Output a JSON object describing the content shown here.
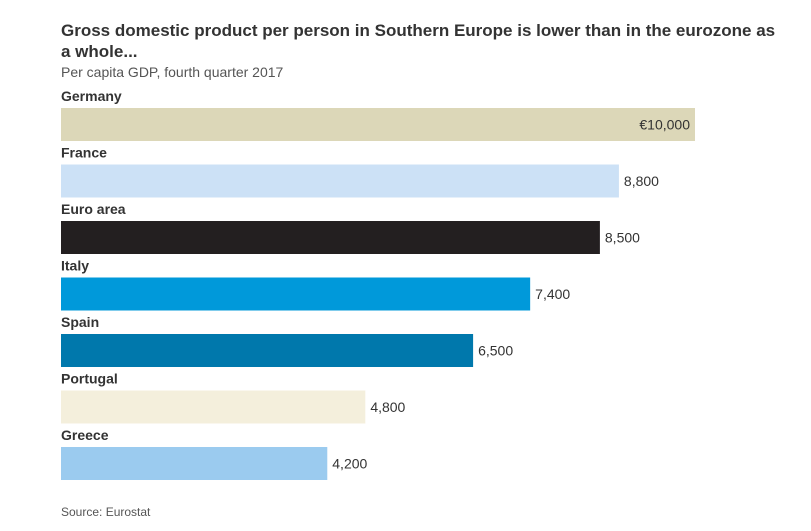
{
  "title": "Gross domestic product per person in Southern Europe is lower than in the eurozone as a whole...",
  "subtitle": "Per capita GDP, fourth quarter 2017",
  "source": "Source: Eurostat",
  "chart_data": {
    "type": "bar",
    "orientation": "horizontal",
    "title": "Gross domestic product per person in Southern Europe is lower than in the eurozone as a whole...",
    "subtitle": "Per capita GDP, fourth quarter 2017",
    "categories": [
      "Germany",
      "France",
      "Euro area",
      "Italy",
      "Spain",
      "Portugal",
      "Greece"
    ],
    "values": [
      10000,
      8800,
      8500,
      7400,
      6500,
      4800,
      4200
    ],
    "value_labels": [
      "€10,000",
      "8,800",
      "8,500",
      "7,400",
      "6,500",
      "4,800",
      "4,200"
    ],
    "colors": [
      "#dcd7b8",
      "#cce1f6",
      "#231f20",
      "#0099da",
      "#0078ac",
      "#f4efdc",
      "#9bcbef"
    ],
    "xlim": [
      0,
      10000
    ],
    "grid": false,
    "legend": "none"
  }
}
